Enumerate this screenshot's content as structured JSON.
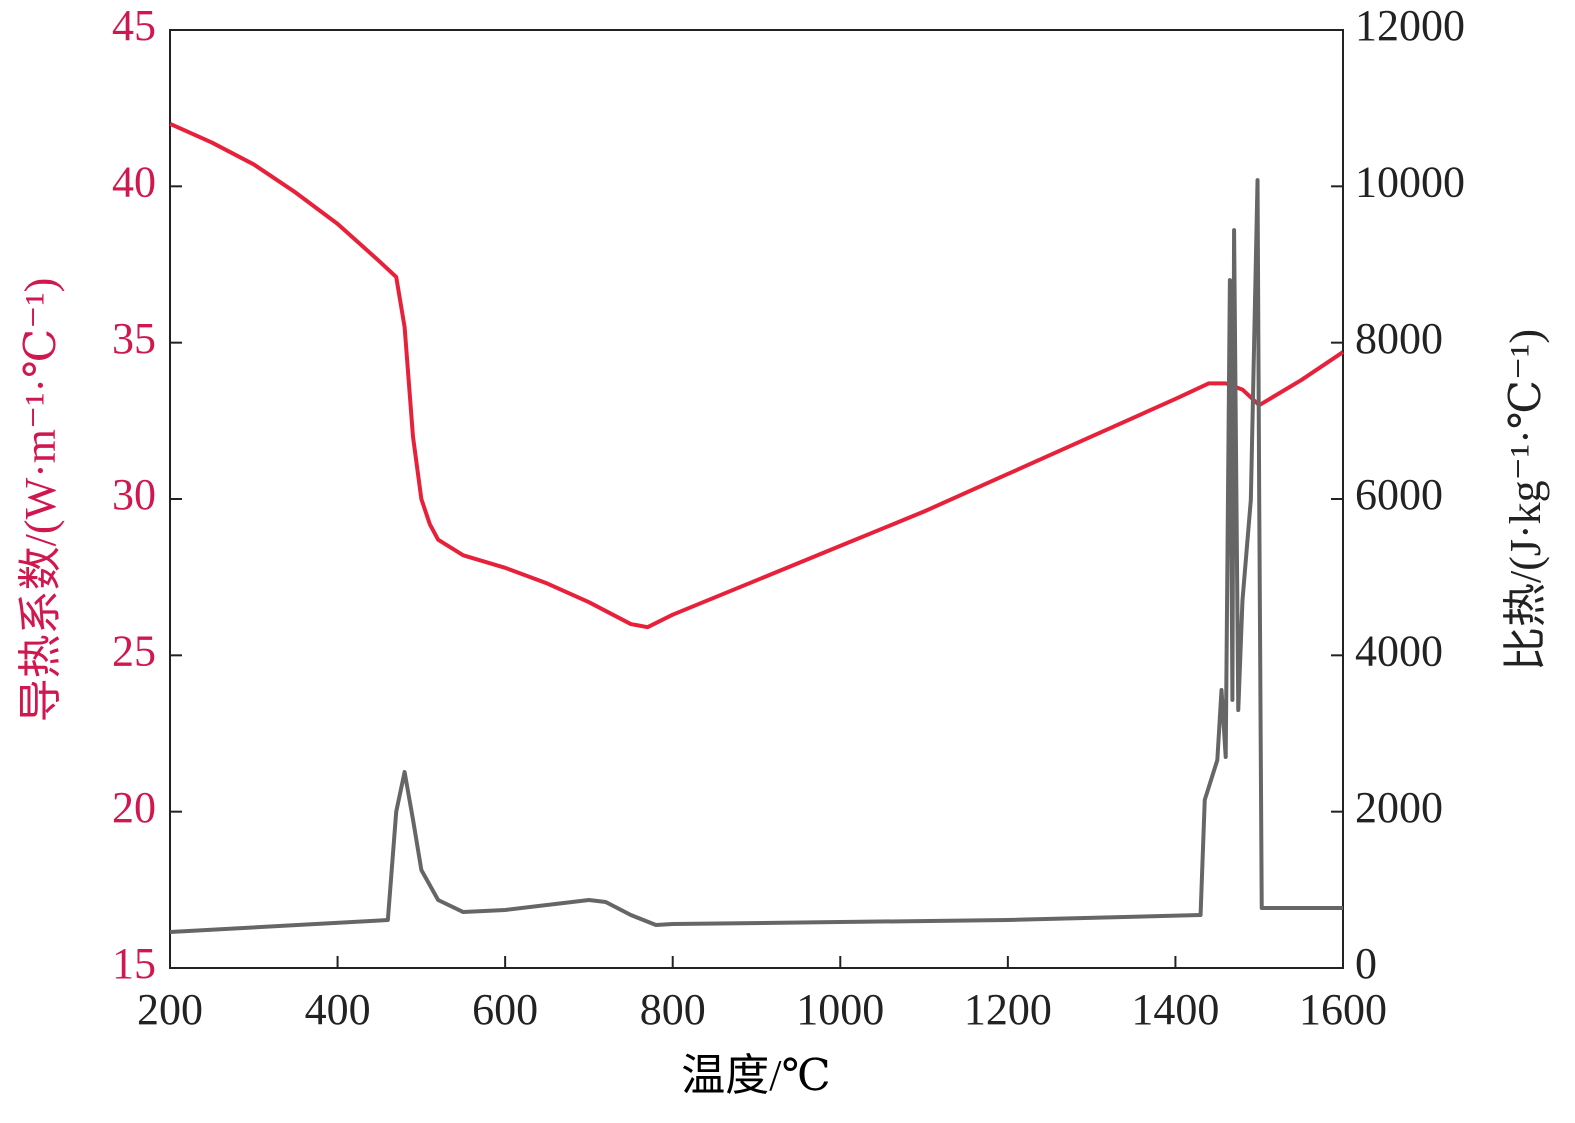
{
  "chart_data": {
    "type": "line",
    "x_label": "温度/℃",
    "y_label": "导热系数/(W·m⁻¹·℃⁻¹)",
    "y2_label": "比热/(J·kg⁻¹·℃⁻¹)",
    "xlim": [
      200,
      1600
    ],
    "xticks": [
      200,
      400,
      600,
      800,
      1000,
      1200,
      1400,
      1600
    ],
    "ylim": [
      15,
      45
    ],
    "yticks": [
      15,
      20,
      25,
      30,
      35,
      40,
      45
    ],
    "y2lim": [
      0,
      12000
    ],
    "y2ticks": [
      0,
      2000,
      4000,
      6000,
      8000,
      10000,
      12000
    ],
    "series": [
      {
        "name": "导热系数",
        "color": "#e8213a",
        "x": [
          200,
          250,
          300,
          350,
          400,
          450,
          470,
          480,
          490,
          500,
          510,
          520,
          550,
          600,
          650,
          700,
          750,
          770,
          800,
          900,
          1000,
          1100,
          1200,
          1300,
          1400,
          1440,
          1460,
          1480,
          1500,
          1550,
          1600
        ],
        "values": [
          42.0,
          41.4,
          40.7,
          39.8,
          38.8,
          37.6,
          37.1,
          35.5,
          32.0,
          30.0,
          29.2,
          28.7,
          28.2,
          27.8,
          27.3,
          26.7,
          26.0,
          25.9,
          26.3,
          27.4,
          28.5,
          29.6,
          30.8,
          32.0,
          33.2,
          33.7,
          33.7,
          33.5,
          33.0,
          33.8,
          34.7
        ]
      },
      {
        "name": "比热",
        "color": "#666666",
        "axis": "y2",
        "x": [
          200,
          460,
          470,
          480,
          490,
          500,
          520,
          550,
          600,
          700,
          720,
          750,
          780,
          800,
          1000,
          1200,
          1430,
          1435,
          1450,
          1455,
          1460,
          1465,
          1468,
          1470,
          1475,
          1480,
          1490,
          1495,
          1498,
          1500,
          1503,
          1600
        ],
        "values": [
          460,
          614,
          2000,
          2507,
          1900,
          1254,
          870,
          716,
          742,
          870,
          844,
          678,
          550,
          563,
          588,
          614,
          678,
          2150,
          2660,
          3556,
          2700,
          8800,
          3430,
          9440,
          3300,
          4700,
          5990,
          8540,
          10080,
          5990,
          768,
          768
        ]
      }
    ]
  }
}
